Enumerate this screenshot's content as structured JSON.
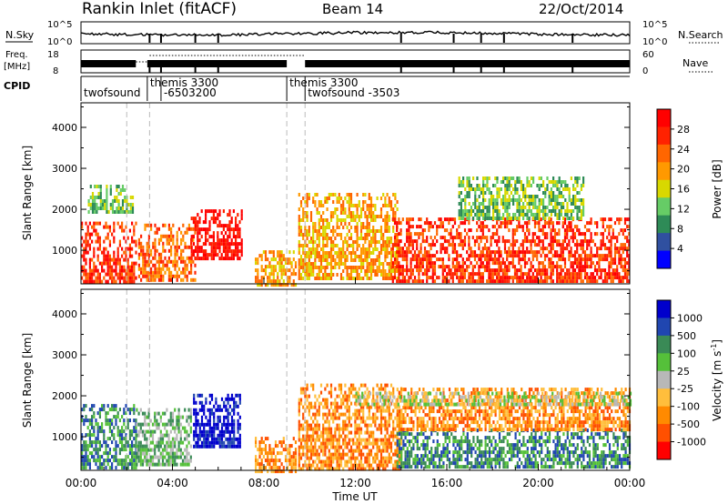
{
  "header": {
    "station": "Rankin Inlet (fitACF)",
    "beam": "Beam 14",
    "date": "22/Oct/2014"
  },
  "noise_panel": {
    "left_label": "N.Sky",
    "right_label": "N.Search",
    "ticks": [
      "10^5",
      "10^0"
    ]
  },
  "freq_panel": {
    "left_label_1": "Freq.",
    "left_label_2": "[MHz]",
    "left_ticks": [
      "18",
      "8"
    ],
    "right_label": "Nave",
    "right_ticks": [
      "60",
      "0"
    ]
  },
  "cpid_panel": {
    "label": "CPID",
    "programs": [
      {
        "name": "twofsound",
        "start_hour": 0.0
      },
      {
        "name": "themis 3300",
        "start_hour": 2.9
      },
      {
        "name": "-6503200",
        "start_hour": 3.5
      },
      {
        "name": "themis 3300",
        "start_hour": 9.0
      },
      {
        "name": "twofsound  -3503",
        "start_hour": 9.8
      }
    ]
  },
  "colors": {
    "power": [
      "#0000ff",
      "#3050a0",
      "#2e8b57",
      "#66cc66",
      "#d8d800",
      "#ff9900",
      "#ff6600",
      "#ff2200",
      "#ff0000"
    ],
    "velocity": [
      "#0000cc",
      "#2046b0",
      "#3a8a56",
      "#55c03a",
      "#b8b8b8",
      "#ffbe3c",
      "#ff8a00",
      "#ff5000",
      "#ff0000"
    ]
  },
  "chart_data": [
    {
      "type": "heatmap",
      "title": "Power",
      "ylabel": "Slant Range [km]",
      "ylim": [
        180,
        4600
      ],
      "xlim": [
        0,
        24
      ],
      "yticks": [
        "1000",
        "2000",
        "3000",
        "4000"
      ],
      "colorbar_label": "Power [dB]",
      "colorbar_ticks": [
        "4",
        "8",
        "12",
        "16",
        "20",
        "24",
        "28"
      ],
      "regions": [
        {
          "t0": 0.0,
          "t1": 2.4,
          "r0": 250,
          "r1": 1700,
          "level": 7
        },
        {
          "t0": 0.3,
          "t1": 2.3,
          "r0": 1900,
          "r1": 2600,
          "level": 3
        },
        {
          "t0": 2.5,
          "t1": 5.0,
          "r0": 300,
          "r1": 1650,
          "level": 6
        },
        {
          "t0": 4.8,
          "t1": 7.0,
          "r0": 800,
          "r1": 2000,
          "level": 8
        },
        {
          "t0": 7.6,
          "t1": 9.4,
          "r0": 200,
          "r1": 1000,
          "level": 5
        },
        {
          "t0": 9.5,
          "t1": 13.8,
          "r0": 300,
          "r1": 2400,
          "level": 5
        },
        {
          "t0": 13.6,
          "t1": 24.0,
          "r0": 250,
          "r1": 1800,
          "level": 7
        },
        {
          "t0": 16.5,
          "t1": 22.0,
          "r0": 1800,
          "r1": 2800,
          "level": 3
        }
      ]
    },
    {
      "type": "heatmap",
      "title": "Velocity",
      "ylabel": "Slant Range [km]",
      "xlabel": "Time UT",
      "ylim": [
        180,
        4600
      ],
      "xlim": [
        0,
        24
      ],
      "yticks": [
        "1000",
        "2000",
        "3000",
        "4000"
      ],
      "xticks": [
        "00:00",
        "04:00",
        "08:00",
        "12:00",
        "16:00",
        "20:00",
        "00:00"
      ],
      "colorbar_label": "Velocity [m s^-1]",
      "colorbar_ticks": [
        "1000",
        "500",
        "100",
        "25",
        "-25",
        "-100",
        "-500",
        "-1000"
      ],
      "regions": [
        {
          "t0": 0.0,
          "t1": 2.4,
          "r0": 250,
          "r1": 1800,
          "level": 2
        },
        {
          "t0": 2.4,
          "t1": 4.8,
          "r0": 300,
          "r1": 1700,
          "level": 3
        },
        {
          "t0": 4.9,
          "t1": 7.0,
          "r0": 800,
          "r1": 2050,
          "level": 0
        },
        {
          "t0": 7.6,
          "t1": 9.4,
          "r0": 200,
          "r1": 1000,
          "level": 6
        },
        {
          "t0": 9.5,
          "t1": 14.0,
          "r0": 250,
          "r1": 2300,
          "level": 6
        },
        {
          "t0": 13.8,
          "t1": 24.0,
          "r0": 250,
          "r1": 1200,
          "level": 2
        },
        {
          "t0": 13.8,
          "t1": 24.0,
          "r0": 1200,
          "r1": 2200,
          "level": 6
        },
        {
          "t0": 12.0,
          "t1": 24.0,
          "r0": 1800,
          "r1": 2100,
          "level": 4
        }
      ]
    }
  ],
  "time_axis": {
    "title": "Time UT",
    "ticks": [
      "00:00",
      "04:00",
      "08:00",
      "12:00",
      "16:00",
      "20:00",
      "00:00"
    ]
  },
  "colorbars": {
    "power_label": "Power [dB]",
    "power_ticks": [
      "4",
      "8",
      "12",
      "16",
      "20",
      "24",
      "28"
    ],
    "velocity_label": "Velocity [m s",
    "velocity_sup": "-1",
    "velocity_close": "]",
    "velocity_ticks": [
      "1000",
      "500",
      "100",
      "25",
      "-25",
      "-100",
      "-500",
      "-1000"
    ]
  },
  "y_axis": {
    "label": "Slant Range [km]",
    "ticks": [
      "1000",
      "2000",
      "3000",
      "4000"
    ]
  }
}
